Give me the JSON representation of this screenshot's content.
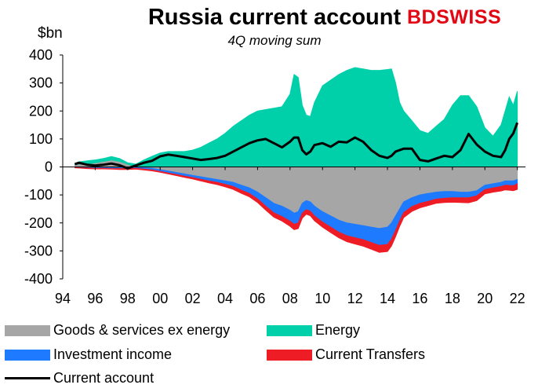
{
  "header": {
    "title": "Russia current account",
    "subtitle": "4Q moving sum",
    "unit": "$bn",
    "logo_text": "BDSWISS"
  },
  "colors": {
    "goods_services": "#a6a6a6",
    "energy": "#00d0aa",
    "investment_income": "#1e7bff",
    "current_transfers": "#ee1c24",
    "current_account": "#000000"
  },
  "legend": {
    "goods_services": "Goods & services ex energy",
    "energy": "Energy",
    "investment_income": "Investment income",
    "current_transfers": "Current Transfers",
    "current_account": "Current account"
  },
  "chart_data": {
    "type": "area",
    "title": "Russia current account",
    "subtitle": "4Q moving sum",
    "ylabel": "$bn",
    "ylim": [
      -400,
      400
    ],
    "yticks": [
      400,
      300,
      200,
      100,
      0,
      -100,
      -200,
      -300,
      -400
    ],
    "xlim": [
      1994,
      2022.5
    ],
    "xticks": [
      1994,
      1996,
      1998,
      2000,
      2002,
      2004,
      2006,
      2008,
      2010,
      2012,
      2014,
      2016,
      2018,
      2020,
      2022
    ],
    "xtick_labels": [
      "94",
      "96",
      "98",
      "00",
      "02",
      "04",
      "06",
      "08",
      "10",
      "12",
      "14",
      "16",
      "18",
      "20",
      "22"
    ],
    "grid": false,
    "legend_position": "bottom",
    "x": [
      1994.75,
      1995,
      1995.5,
      1996,
      1996.5,
      1997,
      1997.5,
      1998,
      1998.5,
      1999,
      1999.5,
      2000,
      2000.5,
      2001,
      2001.5,
      2002,
      2002.5,
      2003,
      2003.5,
      2004,
      2004.5,
      2005,
      2005.5,
      2006,
      2006.5,
      2007,
      2007.5,
      2008,
      2008.25,
      2008.5,
      2008.75,
      2009,
      2009.25,
      2009.5,
      2010,
      2010.5,
      2011,
      2011.5,
      2012,
      2012.5,
      2013,
      2013.5,
      2014,
      2014.25,
      2014.5,
      2014.75,
      2015,
      2015.5,
      2016,
      2016.5,
      2017,
      2017.5,
      2018,
      2018.5,
      2019,
      2019.5,
      2020,
      2020.5,
      2021,
      2021.25,
      2021.5,
      2021.75,
      2022
    ],
    "series": [
      {
        "name": "Energy",
        "values": [
          5,
          8,
          12,
          10,
          10,
          12,
          10,
          5,
          10,
          25,
          38,
          50,
          55,
          55,
          55,
          60,
          70,
          85,
          100,
          120,
          145,
          165,
          185,
          200,
          205,
          210,
          215,
          260,
          330,
          320,
          220,
          185,
          180,
          230,
          290,
          310,
          330,
          345,
          355,
          350,
          345,
          345,
          348,
          350,
          300,
          230,
          200,
          165,
          130,
          120,
          145,
          170,
          220,
          255,
          255,
          215,
          140,
          110,
          150,
          200,
          250,
          220,
          270
        ]
      },
      {
        "name": "Goods & services ex energy",
        "values": [
          8,
          10,
          10,
          15,
          20,
          25,
          20,
          10,
          0,
          -3,
          -5,
          -10,
          -15,
          -20,
          -25,
          -30,
          -35,
          -40,
          -45,
          -50,
          -55,
          -65,
          -75,
          -90,
          -110,
          -130,
          -140,
          -155,
          -165,
          -160,
          -130,
          -120,
          -125,
          -140,
          -160,
          -175,
          -190,
          -200,
          -205,
          -210,
          -215,
          -220,
          -215,
          -200,
          -175,
          -150,
          -125,
          -110,
          -100,
          -95,
          -90,
          -88,
          -88,
          -90,
          -90,
          -85,
          -65,
          -60,
          -55,
          -50,
          -50,
          -50,
          -45
        ]
      },
      {
        "name": "Investment income",
        "values": [
          -2,
          -3,
          -4,
          -5,
          -5,
          -6,
          -6,
          -6,
          -5,
          -5,
          -6,
          -6,
          -7,
          -7,
          -8,
          -8,
          -9,
          -10,
          -10,
          -12,
          -15,
          -18,
          -20,
          -24,
          -30,
          -34,
          -37,
          -39,
          -40,
          -40,
          -35,
          -33,
          -33,
          -35,
          -37,
          -40,
          -43,
          -46,
          -48,
          -50,
          -55,
          -60,
          -62,
          -58,
          -52,
          -42,
          -38,
          -32,
          -30,
          -28,
          -25,
          -24,
          -22,
          -20,
          -20,
          -18,
          -16,
          -15,
          -15,
          -15,
          -16,
          -17,
          -15
        ]
      },
      {
        "name": "Current Transfers",
        "values": [
          -1,
          -1,
          -2,
          -2,
          -2,
          -2,
          -3,
          -3,
          -3,
          -3,
          -3,
          -3,
          -3,
          -4,
          -4,
          -5,
          -6,
          -7,
          -8,
          -9,
          -10,
          -11,
          -12,
          -13,
          -14,
          -15,
          -16,
          -18,
          -19,
          -20,
          -18,
          -16,
          -16,
          -17,
          -18,
          -19,
          -20,
          -21,
          -22,
          -23,
          -24,
          -25,
          -25,
          -24,
          -22,
          -20,
          -18,
          -17,
          -16,
          -15,
          -15,
          -15,
          -16,
          -17,
          -18,
          -17,
          -15,
          -15,
          -16,
          -17,
          -17,
          -18,
          -20
        ]
      },
      {
        "name": "Current account",
        "values": [
          10,
          15,
          8,
          5,
          8,
          12,
          6,
          -5,
          5,
          15,
          22,
          38,
          44,
          40,
          35,
          30,
          25,
          28,
          32,
          40,
          55,
          70,
          85,
          95,
          100,
          85,
          70,
          90,
          105,
          105,
          60,
          45,
          55,
          78,
          85,
          72,
          90,
          88,
          105,
          90,
          60,
          40,
          32,
          40,
          55,
          60,
          65,
          65,
          25,
          20,
          30,
          40,
          35,
          60,
          118,
          80,
          55,
          40,
          35,
          60,
          100,
          120,
          158
        ]
      }
    ]
  }
}
